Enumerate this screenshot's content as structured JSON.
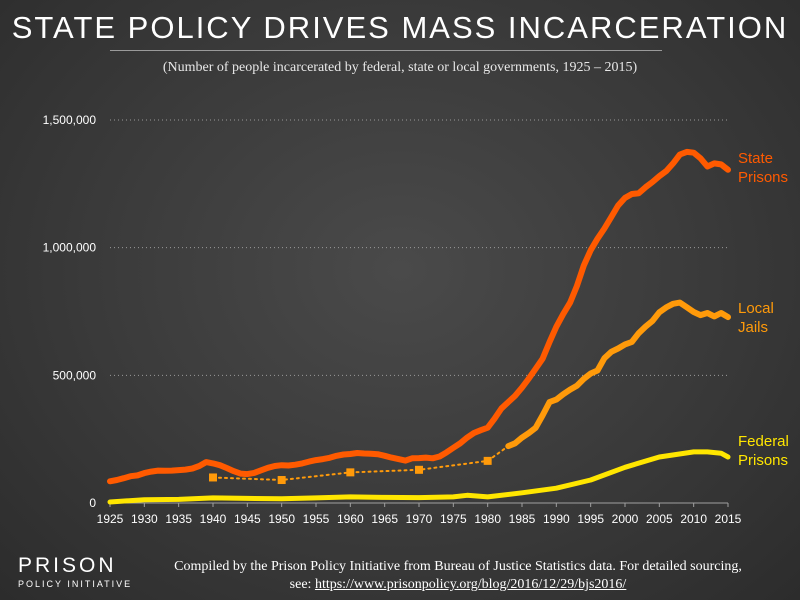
{
  "title": "STATE POLICY DRIVES MASS INCARCERATION",
  "subtitle": "(Number of people incarcerated by federal, state or local governments, 1925 – 2015)",
  "footer": {
    "line1": "Compiled by the Prison Policy Initiative from Bureau of Justice Statistics data. For detailed sourcing,",
    "line2_prefix": "see: ",
    "url": "https://www.prisonpolicy.org/blog/2016/12/29/bjs2016/"
  },
  "logo": {
    "name": "PRISON",
    "sub": "POLICY INITIATIVE"
  },
  "colors": {
    "state": "#ff5a00",
    "local": "#ff9a0a",
    "federal": "#ffe600",
    "axis": "#a0a0a0",
    "grid": "#9a9a9a"
  },
  "chart_data": {
    "type": "line",
    "title": "STATE POLICY DRIVES MASS INCARCERATION",
    "xlabel": "",
    "ylabel": "",
    "xlim": [
      1925,
      2015
    ],
    "ylim": [
      0,
      1500000
    ],
    "x_ticks": [
      "1925",
      "1930",
      "1935",
      "1940",
      "1945",
      "1950",
      "1955",
      "1960",
      "1965",
      "1970",
      "1975",
      "1980",
      "1985",
      "1990",
      "1995",
      "2000",
      "2005",
      "2010",
      "2015"
    ],
    "y_ticks": [
      {
        "value": 0,
        "label": "0"
      },
      {
        "value": 500000,
        "label": "500,000"
      },
      {
        "value": 1000000,
        "label": "1,000,000"
      },
      {
        "value": 1500000,
        "label": "1,500,000"
      }
    ],
    "grid": "horizontal dotted",
    "series": [
      {
        "name": "State Prisons",
        "label_lines": [
          "State",
          "Prisons"
        ],
        "style": "solid",
        "x": [
          1925,
          1926,
          1927,
          1928,
          1929,
          1930,
          1931,
          1932,
          1933,
          1934,
          1935,
          1936,
          1937,
          1938,
          1939,
          1940,
          1941,
          1942,
          1943,
          1944,
          1945,
          1946,
          1947,
          1948,
          1949,
          1950,
          1951,
          1952,
          1953,
          1954,
          1955,
          1956,
          1957,
          1958,
          1959,
          1960,
          1961,
          1962,
          1963,
          1964,
          1965,
          1966,
          1967,
          1968,
          1969,
          1970,
          1971,
          1972,
          1973,
          1974,
          1975,
          1976,
          1977,
          1978,
          1979,
          1980,
          1981,
          1982,
          1983,
          1984,
          1985,
          1986,
          1987,
          1988,
          1989,
          1990,
          1991,
          1992,
          1993,
          1994,
          1995,
          1996,
          1997,
          1998,
          1999,
          2000,
          2001,
          2002,
          2003,
          2004,
          2005,
          2006,
          2007,
          2008,
          2009,
          2010,
          2011,
          2012,
          2013,
          2014,
          2015
        ],
        "values": [
          85000,
          90000,
          97000,
          105000,
          108000,
          117000,
          123000,
          127000,
          126000,
          127000,
          129000,
          131000,
          135000,
          145000,
          160000,
          155000,
          148000,
          137000,
          125000,
          115000,
          113000,
          118000,
          128000,
          138000,
          145000,
          148000,
          147000,
          150000,
          155000,
          162000,
          168000,
          172000,
          177000,
          185000,
          190000,
          192000,
          196000,
          194000,
          193000,
          191000,
          185000,
          178000,
          172000,
          166000,
          175000,
          176000,
          178000,
          175000,
          182000,
          198000,
          216000,
          234000,
          256000,
          274000,
          285000,
          295000,
          330000,
          370000,
          395000,
          420000,
          452000,
          488000,
          526000,
          565000,
          630000,
          690000,
          740000,
          785000,
          850000,
          930000,
          990000,
          1035000,
          1075000,
          1120000,
          1165000,
          1195000,
          1210000,
          1213000,
          1237000,
          1257000,
          1280000,
          1300000,
          1330000,
          1365000,
          1375000,
          1372000,
          1350000,
          1318000,
          1330000,
          1326000,
          1305000
        ]
      },
      {
        "name": "Local Jails",
        "label_lines": [
          "Local",
          "Jails"
        ],
        "style": "solid",
        "x": [
          1983,
          1984,
          1985,
          1986,
          1987,
          1988,
          1989,
          1990,
          1991,
          1992,
          1993,
          1994,
          1995,
          1996,
          1997,
          1998,
          1999,
          2000,
          2001,
          2002,
          2003,
          2004,
          2005,
          2006,
          2007,
          2008,
          2009,
          2010,
          2011,
          2012,
          2013,
          2014,
          2015
        ],
        "values": [
          223000,
          234000,
          256000,
          274000,
          295000,
          343000,
          395000,
          405000,
          426000,
          444000,
          459000,
          486000,
          507000,
          519000,
          567000,
          592000,
          605000,
          621000,
          631000,
          665000,
          691000,
          713000,
          747000,
          766000,
          780000,
          785000,
          767000,
          748000,
          736000,
          744000,
          731000,
          744000,
          728000
        ]
      },
      {
        "name": "Local Jails (sporadic data)",
        "style": "dotted",
        "x": [
          1940,
          1950,
          1960,
          1970,
          1980,
          1983
        ],
        "values": [
          100000,
          90000,
          120000,
          130000,
          165000,
          223000
        ],
        "markers_x": [
          1940,
          1950,
          1960,
          1970,
          1980
        ]
      },
      {
        "name": "Federal Prisons",
        "label_lines": [
          "Federal",
          "Prisons"
        ],
        "style": "solid",
        "x": [
          1925,
          1930,
          1935,
          1940,
          1945,
          1950,
          1955,
          1960,
          1965,
          1970,
          1975,
          1977,
          1980,
          1985,
          1990,
          1995,
          2000,
          2005,
          2010,
          2012,
          2014,
          2015
        ],
        "values": [
          4000,
          13000,
          14000,
          20000,
          18000,
          17000,
          20000,
          24000,
          22000,
          21000,
          24000,
          30000,
          24000,
          40000,
          58000,
          90000,
          140000,
          180000,
          200000,
          200000,
          195000,
          180000
        ]
      }
    ]
  }
}
